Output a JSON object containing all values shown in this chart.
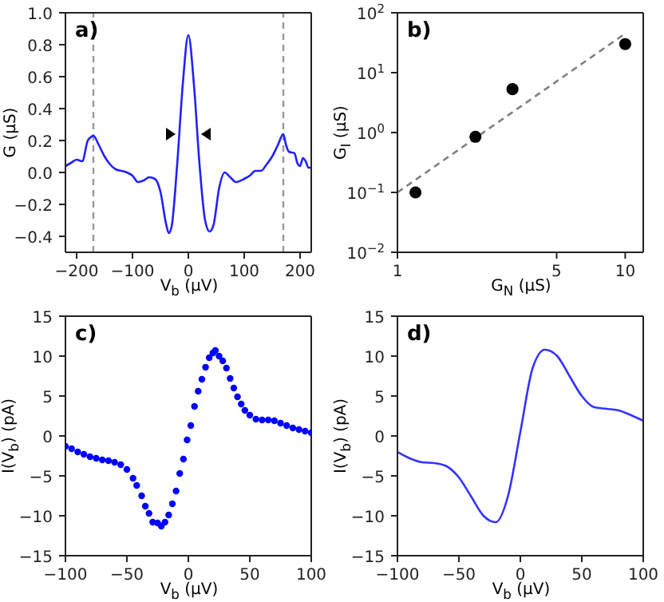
{
  "chart_data": [
    {
      "type": "line",
      "xlabel": "V$_{b}$ (μV)",
      "ylabel": "G (μS)",
      "annotations": [
        "a)"
      ],
      "color": "#2020ff",
      "xlim": [
        -220,
        220
      ],
      "xticks": [
        -200,
        -100,
        0,
        100,
        200
      ],
      "ylim": [
        -0.5,
        1.0
      ],
      "yticks": [
        {
          "value": -0.4,
          "label": "−0.4"
        },
        {
          "value": -0.2,
          "label": "−0.2"
        },
        {
          "value": 0,
          "label": "0.0"
        },
        0.2,
        0.4,
        0.6,
        0.8,
        {
          "value": 1,
          "label": "1.0"
        }
      ],
      "x": [
        -220,
        -210,
        -200,
        -190,
        -180,
        -175,
        -170,
        -160,
        -150,
        -140,
        -130,
        -120,
        -110,
        -100,
        -90,
        -80,
        -70,
        -60,
        -50,
        -40,
        -35,
        -30,
        -20,
        -10,
        0,
        10,
        20,
        30,
        38,
        45,
        55,
        65,
        75,
        85,
        100,
        110,
        120,
        130,
        140,
        150,
        160,
        170,
        175,
        180,
        190,
        195,
        200,
        205,
        210,
        215,
        220
      ],
      "values": [
        0.04,
        0.06,
        0.08,
        0.07,
        0.2,
        0.22,
        0.23,
        0.17,
        0.1,
        0.05,
        0.02,
        0.01,
        0.0,
        -0.02,
        -0.06,
        -0.05,
        -0.03,
        -0.04,
        -0.12,
        -0.32,
        -0.38,
        -0.34,
        0.05,
        0.55,
        0.86,
        0.55,
        0.05,
        -0.3,
        -0.37,
        -0.33,
        -0.1,
        0.0,
        -0.03,
        -0.06,
        -0.04,
        -0.02,
        0.01,
        0.01,
        0.05,
        0.1,
        0.17,
        0.24,
        0.17,
        0.13,
        0.12,
        0.06,
        0.04,
        0.09,
        0.07,
        0.03,
        0.03
      ],
      "ref_lines": [
        {
          "axis": "x",
          "value": -170,
          "color": "#999999",
          "line_style": "dashed"
        },
        {
          "axis": "x",
          "value": 170,
          "color": "#999999",
          "line_style": "dashed"
        }
      ]
    },
    {
      "type": "scatter",
      "xlabel": "G$_{N}$ (μS)",
      "ylabel": "G$_{I}$ (μS)",
      "annotations": [
        "b)"
      ],
      "log": "xy",
      "xlim": [
        1,
        12
      ],
      "xticks": [
        1,
        5,
        10
      ],
      "ylim": [
        0.01,
        100
      ],
      "yticks": [
        {
          "value": 0.01,
          "label": "10$^{−2}$"
        },
        {
          "value": 0.1,
          "label": "10$^{−1}$"
        },
        {
          "value": 1,
          "label": "10$^{0}$"
        },
        {
          "value": 10,
          "label": "10$^{1}$"
        },
        {
          "value": 100,
          "label": "10$^{2}$"
        }
      ],
      "series": [
        {
          "marker": "circle",
          "color": "#000000",
          "x": [
            1.2,
            2.2,
            3.2,
            10
          ],
          "values": [
            0.1,
            0.85,
            5.3,
            30
          ]
        },
        {
          "type": "line",
          "color": "#808080",
          "line_style": "dashed",
          "x": [
            1,
            10
          ],
          "values": [
            0.1,
            45
          ]
        }
      ]
    },
    {
      "type": "scatter",
      "xlabel": "V$_{b}$ (μV)",
      "ylabel": "I(V$_{b}$) (pA)",
      "annotations": [
        "c)"
      ],
      "marker": "circle",
      "color": "#0000ff",
      "xlim": [
        -100,
        100
      ],
      "xticks": [
        -100,
        -50,
        0,
        50,
        100
      ],
      "ylim": [
        -15,
        15
      ],
      "yticks": [
        -15,
        -10,
        -5,
        0,
        5,
        10,
        15
      ],
      "x": [
        -100,
        -95,
        -90,
        -85,
        -80,
        -75,
        -70,
        -65,
        -60,
        -55,
        -50,
        -45,
        -42,
        -38,
        -35,
        -32,
        -29,
        -25,
        -22,
        -19,
        -16,
        -13,
        -10,
        -7,
        -4,
        -1,
        2,
        5,
        8,
        11,
        14,
        17,
        20,
        22,
        25,
        28,
        31,
        34,
        37,
        40,
        43,
        46,
        50,
        55,
        60,
        65,
        70,
        75,
        80,
        85,
        90,
        95,
        100
      ],
      "values": [
        -1.3,
        -1.6,
        -2.0,
        -2.3,
        -2.6,
        -2.8,
        -3.0,
        -3.1,
        -3.3,
        -3.6,
        -4.2,
        -5.3,
        -6.2,
        -7.5,
        -8.8,
        -9.7,
        -10.8,
        -10.9,
        -11.3,
        -10.8,
        -9.9,
        -8.5,
        -6.9,
        -4.7,
        -2.9,
        -0.5,
        1.3,
        3.7,
        5.6,
        7.1,
        8.6,
        9.8,
        10.4,
        10.7,
        10.0,
        9.4,
        8.5,
        7.2,
        6.0,
        4.9,
        4.0,
        3.2,
        2.6,
        2.1,
        2.0,
        2.0,
        1.9,
        1.6,
        1.3,
        1.0,
        0.8,
        0.6,
        0.4
      ]
    },
    {
      "type": "line",
      "xlabel": "V$_{b}$ (μV)",
      "ylabel": "I(V$_{b}$) (pA)",
      "annotations": [
        "d)"
      ],
      "color": "#3333ff",
      "xlim": [
        -100,
        100
      ],
      "xticks": [
        -100,
        -50,
        0,
        50,
        100
      ],
      "ylim": [
        -15,
        15
      ],
      "yticks": [
        -15,
        -10,
        -5,
        0,
        5,
        10,
        15
      ],
      "x": [
        -100,
        -90,
        -80,
        -70,
        -60,
        -50,
        -40,
        -30,
        -20,
        -10,
        0,
        10,
        20,
        30,
        40,
        50,
        60,
        70,
        80,
        90,
        100
      ],
      "values": [
        -2.0,
        -2.8,
        -3.3,
        -3.4,
        -3.8,
        -5.2,
        -7.6,
        -10.0,
        -10.8,
        -7.5,
        0.5,
        8.5,
        10.8,
        10.0,
        7.5,
        5.0,
        3.6,
        3.4,
        3.2,
        2.6,
        1.9
      ]
    }
  ]
}
